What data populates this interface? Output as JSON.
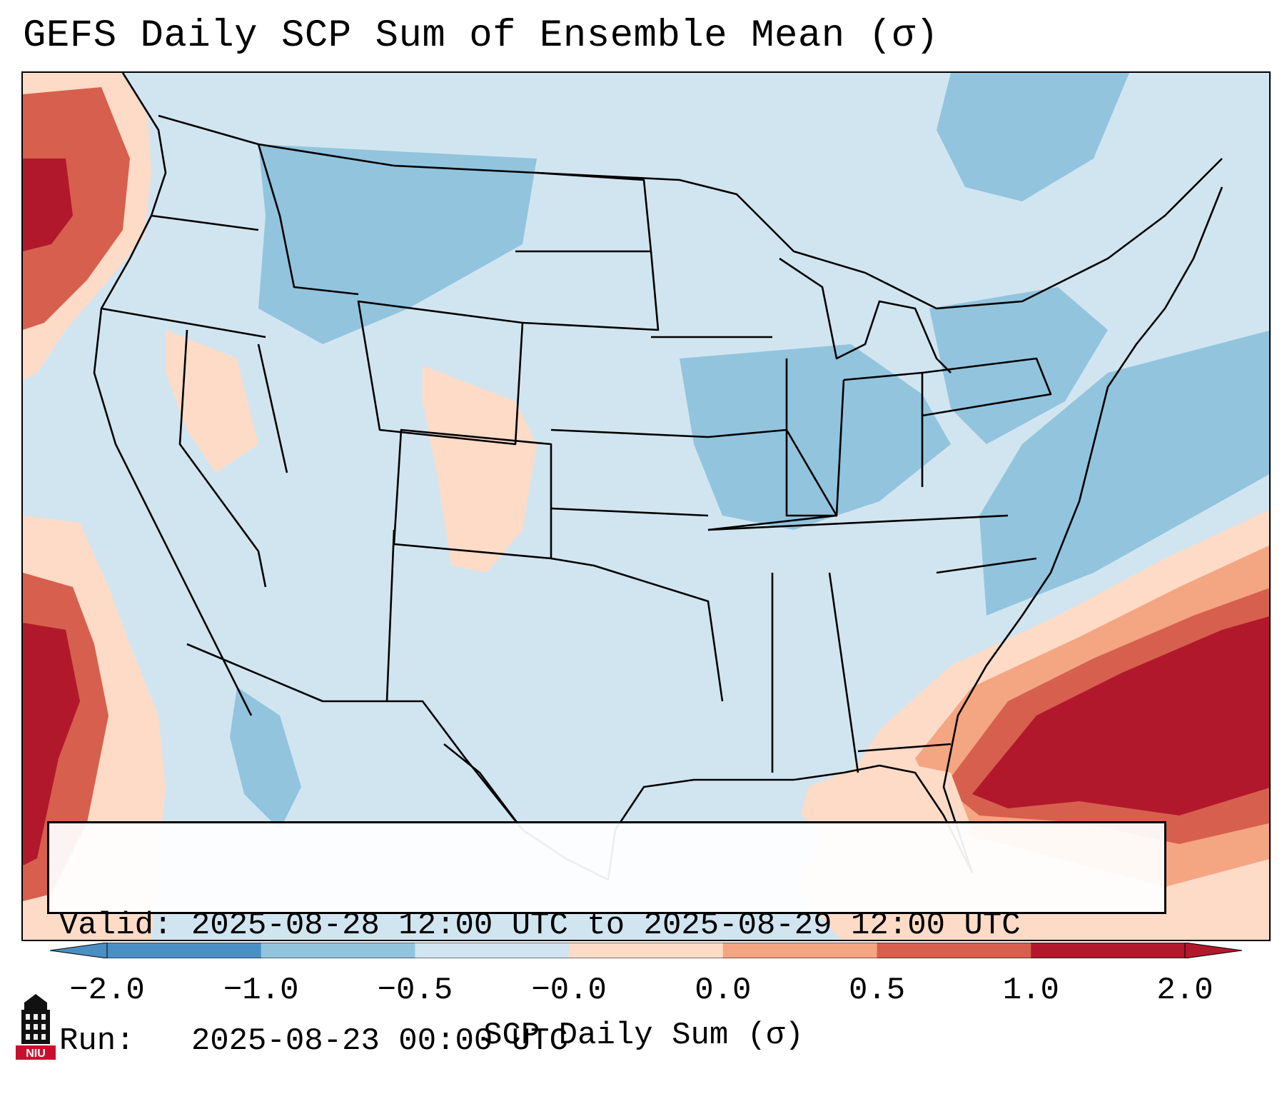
{
  "title": "GEFS Daily SCP Sum of Ensemble Mean (σ)",
  "info": {
    "valid_label": "Valid:",
    "valid_value": "2025-08-28 12:00 UTC to 2025-08-29 12:00 UTC",
    "run_label": "Run:",
    "run_value": "2025-08-23 00:00 UTC"
  },
  "colorbar": {
    "label": "SCP Daily Sum (σ)",
    "ticks": [
      "−2.0",
      "−1.0",
      "−0.5",
      "−0.0",
      "0.0",
      "0.5",
      "1.0",
      "2.0"
    ],
    "colors": [
      "#4a8fc4",
      "#92c4de",
      "#d1e5f0",
      "#f7f7f7",
      "#fddbc7",
      "#f4a582",
      "#d6604d",
      "#b2182b"
    ]
  },
  "logo": {
    "text": "NIU",
    "icon": "niu-tower-logo"
  }
}
